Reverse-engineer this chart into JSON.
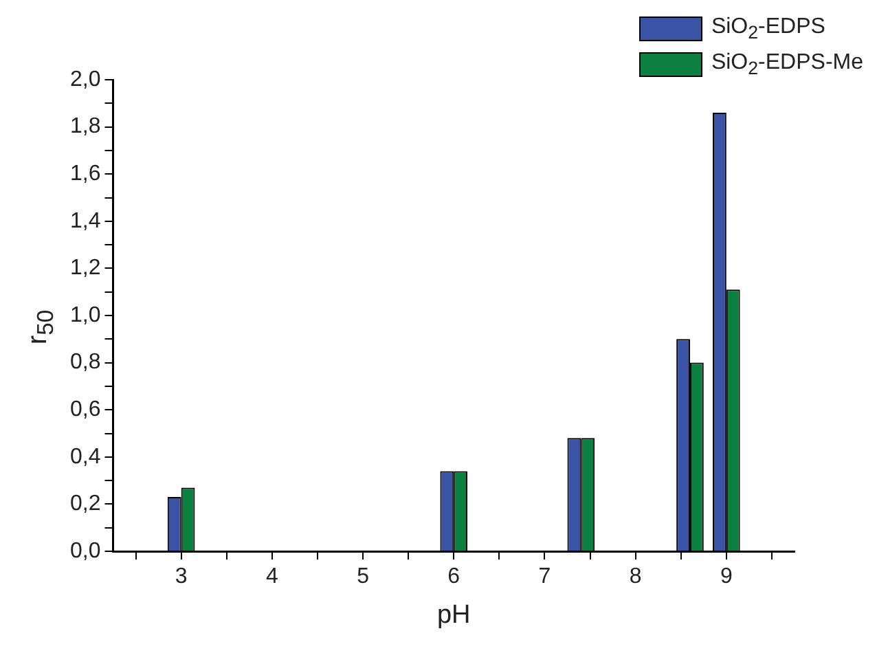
{
  "chart_data": {
    "type": "bar",
    "xlabel": "pH",
    "ylabel": "r$_{50}$",
    "x": [
      3,
      6,
      7.4,
      8.6,
      9
    ],
    "series": [
      {
        "name": "SiO$_{2}$-EDPS",
        "color": "#3a53a4",
        "values": [
          0.23,
          0.34,
          0.48,
          0.9,
          1.86
        ]
      },
      {
        "name": "SiO$_{2}$-EDPS-Me",
        "color": "#0c8040",
        "values": [
          0.27,
          0.34,
          0.48,
          0.8,
          1.11
        ]
      }
    ],
    "xlim": [
      2.25,
      9.75
    ],
    "xticks": [
      {
        "value": 2.5,
        "label": null
      },
      3,
      {
        "value": 3.5,
        "label": null
      },
      4,
      {
        "value": 4.5,
        "label": null
      },
      5,
      {
        "value": 5.5,
        "label": null
      },
      6,
      {
        "value": 6.5,
        "label": null
      },
      7,
      {
        "value": 7.5,
        "label": null
      },
      8,
      {
        "value": 8.5,
        "label": null
      },
      9,
      {
        "value": 9.5,
        "label": null
      }
    ],
    "ylim": [
      0,
      2
    ],
    "yticks": [
      {
        "value": 0,
        "label": "0,0"
      },
      {
        "value": 0.1,
        "label": null
      },
      {
        "value": 0.2,
        "label": "0,2"
      },
      {
        "value": 0.3,
        "label": null
      },
      {
        "value": 0.4,
        "label": "0,4"
      },
      {
        "value": 0.5,
        "label": null
      },
      {
        "value": 0.6,
        "label": "0,6"
      },
      {
        "value": 0.7,
        "label": null
      },
      {
        "value": 0.8,
        "label": "0,8"
      },
      {
        "value": 0.9,
        "label": null
      },
      {
        "value": 1,
        "label": "1,0"
      },
      {
        "value": 1.1,
        "label": null
      },
      {
        "value": 1.2,
        "label": "1,2"
      },
      {
        "value": 1.3,
        "label": null
      },
      {
        "value": 1.4,
        "label": "1,4"
      },
      {
        "value": 1.5,
        "label": null
      },
      {
        "value": 1.6,
        "label": "1,6"
      },
      {
        "value": 1.7,
        "label": null
      },
      {
        "value": 1.8,
        "label": "1,8"
      },
      {
        "value": 1.9,
        "label": null
      },
      {
        "value": 2,
        "label": "2,0"
      }
    ],
    "grid": false,
    "legend": "top right"
  }
}
